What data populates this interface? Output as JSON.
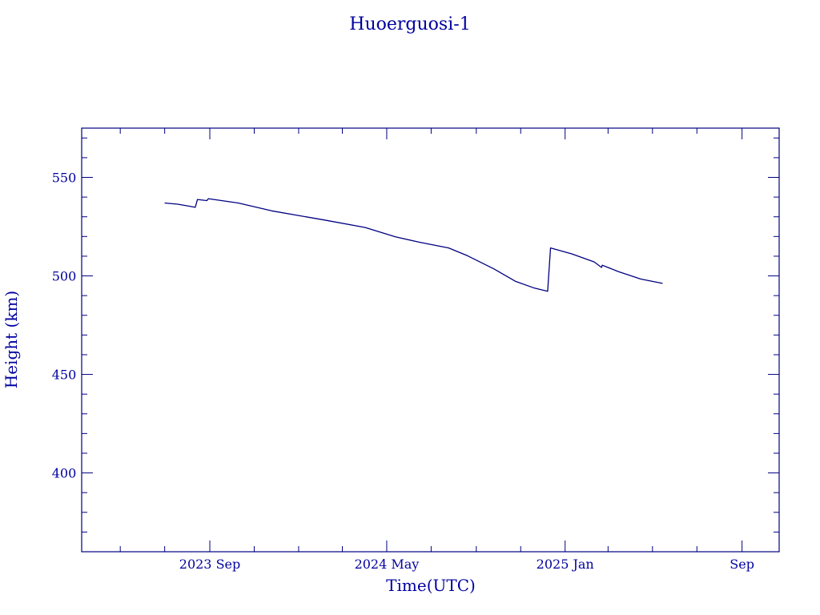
{
  "chart_data": {
    "type": "line",
    "title": "Huoerguosi-1",
    "xlabel": "Time(UTC)",
    "ylabel": "Height (km)",
    "ylim": [
      360,
      575
    ],
    "xlim": [
      "2023-03-09",
      "2025-10-22"
    ],
    "grid": false,
    "x_ticks": [
      {
        "date": "2023-09-01",
        "label": "2023 Sep"
      },
      {
        "date": "2024-05-01",
        "label": "2024 May"
      },
      {
        "date": "2025-01-01",
        "label": "2025 Jan"
      },
      {
        "date": "2025-09-01",
        "label": "Sep"
      }
    ],
    "y_ticks": [
      400,
      450,
      500,
      550
    ],
    "series": [
      {
        "color": "#000080",
        "x": [
          "2023-07-01",
          "2023-07-19",
          "2023-08-03",
          "2023-08-12",
          "2023-08-15",
          "2023-08-28",
          "2023-08-30",
          "2023-10-10",
          "2023-11-25",
          "2024-02-05",
          "2024-04-01",
          "2024-05-13",
          "2024-06-15",
          "2024-07-25",
          "2024-08-20",
          "2024-09-25",
          "2024-10-25",
          "2024-11-20",
          "2024-12-08",
          "2024-12-12",
          "2025-01-10",
          "2025-02-10",
          "2025-02-20",
          "2025-02-21",
          "2025-03-15",
          "2025-04-15",
          "2025-05-15"
        ],
        "y": [
          537,
          536.4,
          535.4,
          534.8,
          538.8,
          538.2,
          539.2,
          537,
          533,
          528.4,
          524.6,
          519.8,
          517.1,
          514.2,
          510.2,
          503.6,
          497.2,
          493.8,
          492.2,
          514.2,
          511.2,
          507.1,
          504.3,
          505.4,
          502.2,
          498.4,
          496.2
        ]
      }
    ]
  }
}
